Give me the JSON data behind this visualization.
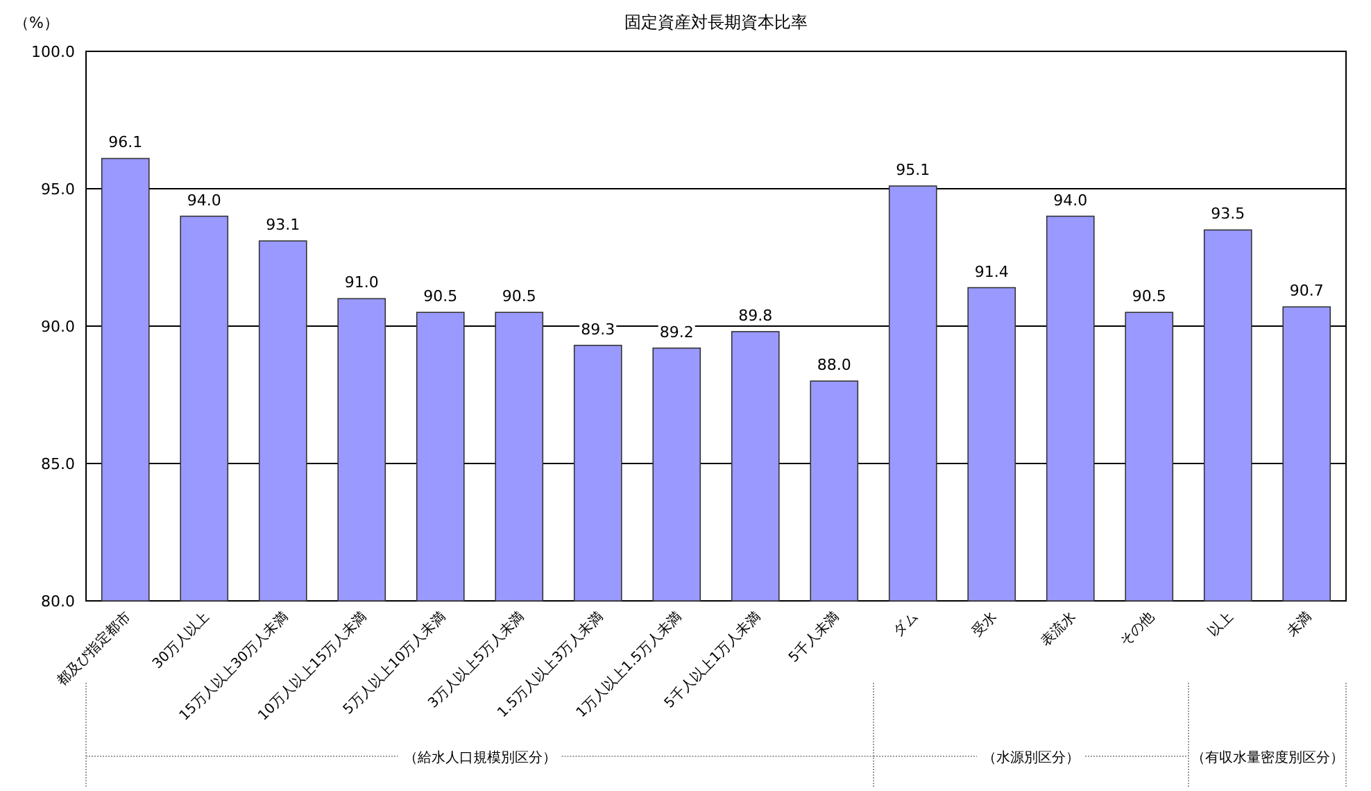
{
  "chart_data": {
    "type": "bar",
    "title": "固定資産対長期資本比率",
    "ylabel": "（%）",
    "categories": [
      "都及び指定都市",
      "30万人以上",
      "15万人以上30万人未満",
      "10万人以上15万人未満",
      "5万人以上10万人未満",
      "3万人以上5万人未満",
      "1.5万人以上3万人未満",
      "1万人以上1.5万人未満",
      "5千人以上1万人未満",
      "5千人未満",
      "ダム",
      "受水",
      "表流水",
      "その他",
      "以上",
      "未満"
    ],
    "values": [
      96.1,
      94.0,
      93.1,
      91.0,
      90.5,
      90.5,
      89.3,
      89.2,
      89.8,
      88.0,
      95.1,
      91.4,
      94.0,
      90.5,
      93.5,
      90.7
    ],
    "value_labels": [
      "96.1",
      "94.0",
      "93.1",
      "91.0",
      "90.5",
      "90.5",
      "89.3",
      "89.2",
      "89.8",
      "88.0",
      "95.1",
      "91.4",
      "94.0",
      "90.5",
      "93.5",
      "90.7"
    ],
    "color": "#9999ff",
    "ylim": [
      80,
      100
    ],
    "yticks": [
      {
        "value": 80,
        "label": "80.0"
      },
      {
        "value": 85,
        "label": "85.0"
      },
      {
        "value": 90,
        "label": "90.0"
      },
      {
        "value": 95,
        "label": "95.0"
      },
      {
        "value": 100,
        "label": "100.0"
      }
    ],
    "grid": "y",
    "annotations": [
      "（給水人口規模別区分）",
      "（水源別区分）",
      "（有収水量密度別区分）"
    ]
  }
}
